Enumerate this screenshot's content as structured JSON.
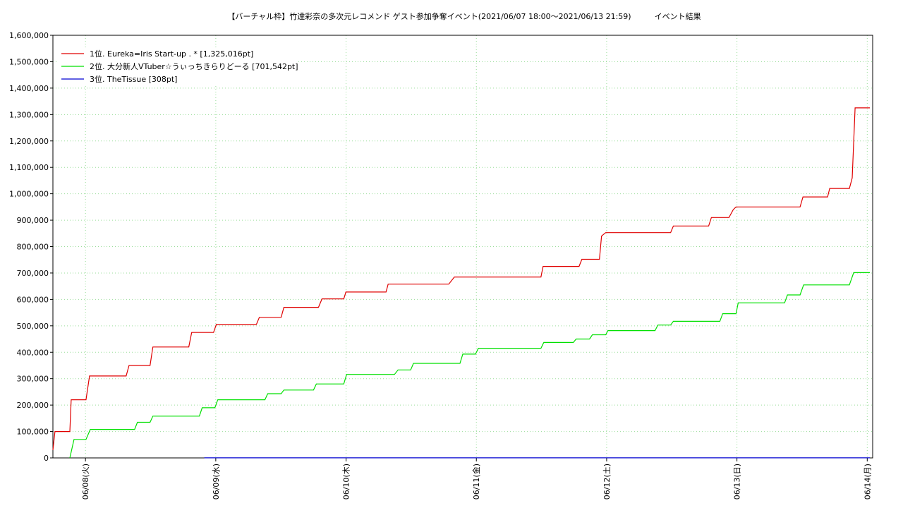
{
  "chart_data": {
    "type": "line",
    "title": "【バーチャル枠】竹達彩奈の多次元レコメンド ゲスト参加争奪イベント(2021/06/07 18:00～2021/06/13 21:59)　　　イベント結果",
    "xlim": [
      "06/07 18:00",
      "06/14 01:00"
    ],
    "xticks": [
      {
        "value": "06/08 00:00",
        "label": "06/08(火)"
      },
      {
        "value": "06/09 00:00",
        "label": "06/09(水)"
      },
      {
        "value": "06/10 00:00",
        "label": "06/10(木)"
      },
      {
        "value": "06/11 00:00",
        "label": "06/11(金)"
      },
      {
        "value": "06/12 00:00",
        "label": "06/12(土)"
      },
      {
        "value": "06/13 00:00",
        "label": "06/13(日)"
      },
      {
        "value": "06/14 00:00",
        "label": "06/14(月)"
      }
    ],
    "ylim": [
      0,
      1600000
    ],
    "yticks": [
      {
        "value": 0,
        "label": "0"
      },
      {
        "value": 100000,
        "label": "100,000"
      },
      {
        "value": 200000,
        "label": "200,000"
      },
      {
        "value": 300000,
        "label": "300,000"
      },
      {
        "value": 400000,
        "label": "400,000"
      },
      {
        "value": 500000,
        "label": "500,000"
      },
      {
        "value": 600000,
        "label": "600,000"
      },
      {
        "value": 700000,
        "label": "700,000"
      },
      {
        "value": 800000,
        "label": "800,000"
      },
      {
        "value": 900000,
        "label": "900,000"
      },
      {
        "value": 1000000,
        "label": "1,000,000"
      },
      {
        "value": 1100000,
        "label": "1,100,000"
      },
      {
        "value": 1200000,
        "label": "1,200,000"
      },
      {
        "value": 1300000,
        "label": "1,300,000"
      },
      {
        "value": 1400000,
        "label": "1,400,000"
      },
      {
        "value": 1500000,
        "label": "1,500,000"
      },
      {
        "value": 1600000,
        "label": "1,600,000"
      }
    ],
    "grid": true,
    "legend": "upper left",
    "series": [
      {
        "name": "1位. Eureka=Iris Start-up . * [1,325,016pt]",
        "color": "#e00000",
        "x": [
          "06/07 18:00",
          "06/07 18:23",
          "06/07 21:07",
          "06/07 21:22",
          "06/08 00:06",
          "06/08 00:45",
          "06/08 07:29",
          "06/08 08:01",
          "06/08 11:54",
          "06/08 12:25",
          "06/08 19:02",
          "06/08 19:34",
          "06/08 23:35",
          "06/09 00:06",
          "06/09 07:29",
          "06/09 08:01",
          "06/09 12:02",
          "06/09 12:33",
          "06/09 18:55",
          "06/09 19:34",
          "06/09 23:35",
          "06/09 23:58",
          "06/10 07:22",
          "06/10 07:45",
          "06/10 18:55",
          "06/10 19:57",
          "06/11 11:54",
          "06/11 12:17",
          "06/11 18:55",
          "06/11 19:26",
          "06/11 22:40",
          "06/11 23:04",
          "06/11 23:50",
          "06/12 11:47",
          "06/12 12:17",
          "06/12 18:47",
          "06/12 19:18",
          "06/12 22:32",
          "06/12 23:19",
          "06/12 23:50",
          "06/13 11:38",
          "06/13 12:10",
          "06/13 16:42",
          "06/13 17:05",
          "06/13 20:43",
          "06/13 21:14",
          "06/13 21:46",
          "06/14 00:29"
        ],
        "values": [
          30000,
          100000,
          100000,
          220000,
          220000,
          310000,
          310000,
          350000,
          350000,
          420000,
          420000,
          475000,
          475000,
          505000,
          505000,
          532000,
          532000,
          570000,
          570000,
          602000,
          602000,
          628000,
          628000,
          658000,
          658000,
          685000,
          685000,
          725000,
          725000,
          752000,
          752000,
          840000,
          853000,
          853000,
          878000,
          878000,
          910000,
          910000,
          940000,
          950000,
          950000,
          988000,
          988000,
          1020000,
          1020000,
          1060000,
          1325016,
          1325016
        ]
      },
      {
        "name": "2位. 大分新人VTuber☆うぃっちきらりどーる [701,542pt]",
        "color": "#00e000",
        "x": [
          "06/07 21:07",
          "06/07 21:53",
          "06/08 00:06",
          "06/08 00:53",
          "06/08 09:03",
          "06/08 09:34",
          "06/08 11:54",
          "06/08 12:25",
          "06/08 20:59",
          "06/08 21:30",
          "06/08 23:50",
          "06/09 00:22",
          "06/09 09:03",
          "06/09 09:34",
          "06/09 12:02",
          "06/09 12:33",
          "06/09 18:00",
          "06/09 18:31",
          "06/09 23:35",
          "06/10 00:06",
          "06/10 08:55",
          "06/10 09:34",
          "06/10 11:54",
          "06/10 12:25",
          "06/10 20:59",
          "06/10 21:30",
          "06/10 23:50",
          "06/11 00:22",
          "06/11 11:54",
          "06/11 12:25",
          "06/11 17:52",
          "06/11 18:23",
          "06/11 20:51",
          "06/11 21:22",
          "06/11 23:50",
          "06/12 00:14",
          "06/12 08:55",
          "06/12 09:26",
          "06/12 11:47",
          "06/12 12:17",
          "06/12 20:51",
          "06/12 21:22",
          "06/12 23:50",
          "06/13 00:14",
          "06/13 08:47",
          "06/13 09:18",
          "06/13 11:38",
          "06/13 12:17",
          "06/13 20:43",
          "06/13 21:30",
          "06/14 00:29"
        ],
        "values": [
          0,
          70000,
          70000,
          108000,
          108000,
          135000,
          135000,
          158000,
          158000,
          190000,
          190000,
          220000,
          220000,
          243000,
          243000,
          257000,
          257000,
          280000,
          280000,
          316000,
          316000,
          333000,
          333000,
          358000,
          358000,
          393000,
          393000,
          415000,
          415000,
          437000,
          437000,
          450000,
          450000,
          466000,
          466000,
          482000,
          482000,
          503000,
          503000,
          517000,
          517000,
          546000,
          546000,
          587000,
          587000,
          617000,
          617000,
          655000,
          655000,
          701542,
          701542
        ]
      },
      {
        "name": "3位. TheTissue [308pt]",
        "color": "#0000d0",
        "x": [
          "06/08 21:53",
          "06/14 00:29"
        ],
        "values": [
          308,
          308
        ]
      }
    ]
  }
}
